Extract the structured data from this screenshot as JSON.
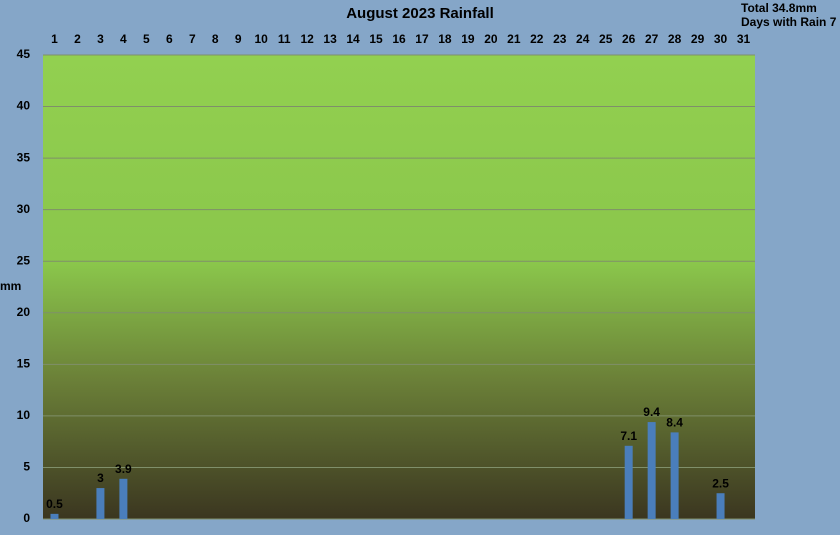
{
  "chart_data": {
    "type": "bar",
    "title": "August 2023 Rainfall",
    "annotations": [
      "Total 34.8mm",
      "Days with Rain 7"
    ],
    "y_label": "mm",
    "categories": [
      "1",
      "2",
      "3",
      "4",
      "5",
      "6",
      "7",
      "8",
      "9",
      "10",
      "11",
      "12",
      "13",
      "14",
      "15",
      "16",
      "17",
      "18",
      "19",
      "20",
      "21",
      "22",
      "23",
      "24",
      "25",
      "26",
      "27",
      "28",
      "29",
      "30",
      "31"
    ],
    "values": [
      0.5,
      null,
      3,
      3.9,
      null,
      null,
      null,
      null,
      null,
      null,
      null,
      null,
      null,
      null,
      null,
      null,
      null,
      null,
      null,
      null,
      null,
      null,
      null,
      null,
      null,
      7.1,
      9.4,
      8.4,
      null,
      2.5,
      null
    ],
    "color": "#4a7ebb",
    "ylim": [
      0,
      45
    ],
    "yticks": [
      0,
      5,
      10,
      15,
      20,
      25,
      30,
      35,
      40,
      45
    ],
    "grid": true
  }
}
